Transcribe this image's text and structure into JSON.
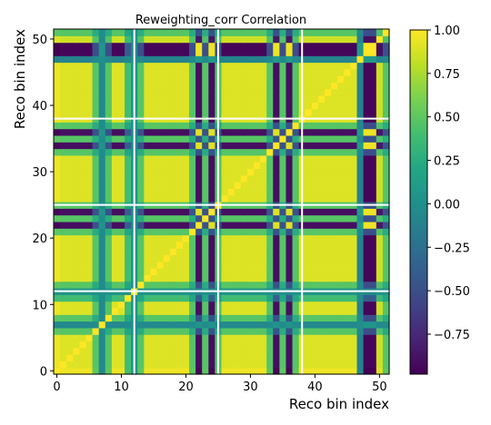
{
  "chart_data": {
    "type": "heatmap",
    "title": "Reweighting_corr Correlation",
    "xlabel": "Reco bin index",
    "ylabel": "Reco bin index",
    "n_bins": 52,
    "xlim": [
      0,
      52
    ],
    "ylim": [
      0,
      52
    ],
    "x_ticks": [
      0,
      10,
      20,
      30,
      40,
      50
    ],
    "y_ticks": [
      0,
      10,
      20,
      30,
      40,
      50
    ],
    "colorbar": {
      "colormap": "viridis",
      "vmin": -0.98,
      "vmax": 1.0,
      "ticks": [
        1.0,
        0.75,
        0.5,
        0.25,
        0.0,
        -0.25,
        -0.5,
        -0.75
      ],
      "tick_labels": [
        "1.00",
        "0.75",
        "0.50",
        "0.25",
        "0.00",
        "−0.25",
        "−0.50",
        "−0.75"
      ]
    },
    "separator_lines_at": [
      12.5,
      25.5,
      38.5
    ],
    "bin_factors": [
      1,
      0.95,
      0.95,
      0.95,
      0.95,
      0.95,
      0.5,
      -0.05,
      0.5,
      0.95,
      0.95,
      0.4,
      0.05,
      0.5,
      0.95,
      0.95,
      0.95,
      0.95,
      0.95,
      0.95,
      0.95,
      0.5,
      -0.95,
      0.5,
      -0.95,
      0.5,
      0.95,
      0.95,
      0.95,
      0.95,
      0.95,
      0.95,
      0.95,
      0.5,
      -0.95,
      0.5,
      -0.95,
      0.5,
      0.95,
      0.95,
      0.95,
      0.95,
      0.95,
      0.95,
      0.95,
      0.95,
      0.95,
      -0.1,
      -1,
      -1,
      0.9,
      0.5
    ]
  }
}
